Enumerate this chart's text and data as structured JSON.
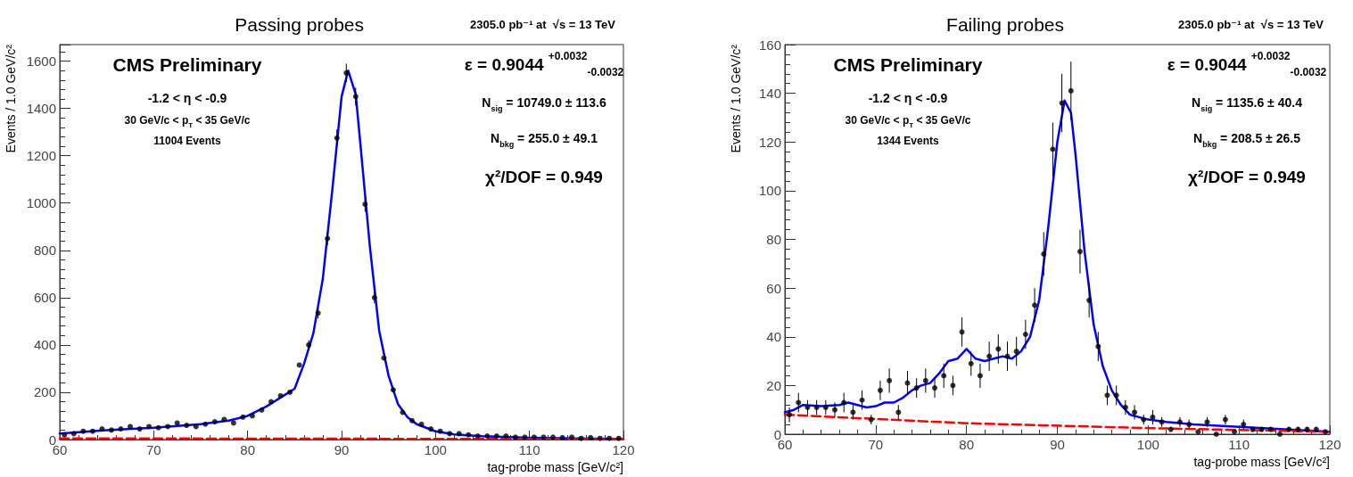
{
  "chart_data": [
    {
      "type": "scatter",
      "title": "Passing probes",
      "subtitle": "2305.0 pb⁻¹ at  √s = 13 TeV",
      "xlabel": "tag-probe mass [GeV/c²]",
      "ylabel": "Events / 1.0 GeV/c²",
      "xlim": [
        60,
        120
      ],
      "xticks": [
        60,
        70,
        80,
        90,
        100,
        110,
        120
      ],
      "ylim": [
        0,
        1670
      ],
      "yticks": [
        0,
        200,
        400,
        600,
        800,
        1000,
        1200,
        1400,
        1600
      ],
      "grid": false,
      "annotations": [
        "CMS Preliminary",
        "-1.2 < η < -0.9",
        "30 GeV/c < p$_{T}$ < 35 GeV/c",
        "11004 Events",
        "ε = 0.9044 $^{+0.0032}$$_{-0.0032}$",
        "N$_{sig}$ = 10749.0 ± 113.6",
        "N$_{bkg}$ = 255.0 ± 49.1",
        "χ²/DOF = 0.949"
      ],
      "series": [
        {
          "color": "#000000",
          "marker": "circle",
          "x": [
            60.5,
            61.5,
            62.5,
            63.5,
            64.5,
            65.5,
            66.5,
            67.5,
            68.5,
            69.5,
            70.5,
            71.5,
            72.5,
            73.5,
            74.5,
            75.5,
            76.5,
            77.5,
            78.5,
            79.5,
            80.5,
            81.5,
            82.5,
            83.5,
            84.5,
            85.5,
            86.5,
            87.5,
            88.5,
            89.5,
            90.5,
            91.5,
            92.5,
            93.5,
            94.5,
            95.5,
            96.5,
            97.5,
            98.5,
            99.5,
            100.5,
            101.5,
            102.5,
            103.5,
            104.5,
            105.5,
            106.5,
            107.5,
            108.5,
            109.5,
            110.5,
            111.5,
            112.5,
            113.5,
            114.5,
            115.5,
            116.5,
            117.5,
            118.5,
            119.5
          ],
          "values": [
            20,
            25,
            35,
            35,
            45,
            40,
            45,
            55,
            45,
            55,
            50,
            55,
            70,
            60,
            55,
            65,
            75,
            85,
            70,
            95,
            100,
            125,
            160,
            185,
            200,
            315,
            400,
            535,
            850,
            1275,
            1550,
            1450,
            995,
            600,
            345,
            210,
            115,
            80,
            65,
            45,
            35,
            25,
            25,
            20,
            15,
            15,
            15,
            15,
            10,
            10,
            10,
            10,
            10,
            8,
            10,
            5,
            8,
            5,
            5,
            5
          ],
          "errors": [
            null,
            null,
            null,
            null,
            null,
            null,
            null,
            null,
            null,
            null,
            null,
            null,
            null,
            null,
            null,
            null,
            null,
            null,
            null,
            null,
            null,
            null,
            null,
            null,
            null,
            null,
            20,
            23,
            29,
            36,
            39,
            38,
            32,
            24,
            null,
            null,
            null,
            null,
            null,
            null,
            null,
            null,
            null,
            null,
            null,
            null,
            null,
            null,
            null,
            null,
            null,
            null,
            null,
            null,
            null,
            null,
            null,
            null,
            null,
            null
          ]
        },
        {
          "type": "line",
          "color": "#0000ff",
          "marker": "none",
          "line_style": "solid",
          "x": [
            60,
            65,
            70,
            75,
            78,
            80,
            82,
            84,
            85,
            86,
            87,
            88,
            89,
            90,
            90.7,
            91.5,
            92,
            93,
            94,
            95,
            96,
            97,
            98,
            100,
            102,
            105,
            110,
            115,
            120
          ],
          "values": [
            25,
            40,
            50,
            65,
            80,
            100,
            140,
            190,
            215,
            320,
            450,
            680,
            1050,
            1450,
            1560,
            1460,
            1250,
            820,
            460,
            270,
            150,
            95,
            65,
            35,
            22,
            14,
            8,
            5,
            3
          ]
        },
        {
          "type": "line",
          "color": "#ff0000",
          "marker": "none",
          "line_style": "dashed",
          "x": [
            60,
            120
          ],
          "values": [
            5,
            2
          ]
        }
      ]
    },
    {
      "type": "scatter",
      "title": "Failing probes",
      "subtitle": "2305.0 pb⁻¹ at  √s = 13 TeV",
      "xlabel": "tag-probe mass [GeV/c²]",
      "ylabel": "Events / 1.0 GeV/c²",
      "xlim": [
        60,
        120
      ],
      "xticks": [
        60,
        70,
        80,
        90,
        100,
        110,
        120
      ],
      "ylim": [
        0,
        160
      ],
      "yticks": [
        0,
        20,
        40,
        60,
        80,
        100,
        120,
        140,
        160
      ],
      "grid": false,
      "annotations": [
        "CMS Preliminary",
        "-1.2 < η < -0.9",
        "30 GeV/c < p$_{T}$ < 35 GeV/c",
        "1344 Events",
        "ε = 0.9044 $^{+0.0032}$$_{-0.0032}$",
        "N$_{sig}$ = 1135.6 ± 40.4",
        "N$_{bkg}$ = 208.5 ± 26.5",
        "χ²/DOF = 0.949"
      ],
      "series": [
        {
          "color": "#000000",
          "marker": "circle",
          "x": [
            60.5,
            61.5,
            62.5,
            63.5,
            64.5,
            65.5,
            66.5,
            67.5,
            68.5,
            69.5,
            70.5,
            71.5,
            72.5,
            73.5,
            74.5,
            75.5,
            76.5,
            77.5,
            78.5,
            79.5,
            80.5,
            81.5,
            82.5,
            83.5,
            84.5,
            85.5,
            86.5,
            87.5,
            88.5,
            89.5,
            90.5,
            91.5,
            92.5,
            93.5,
            94.5,
            95.5,
            96.5,
            97.5,
            98.5,
            99.5,
            100.5,
            101.5,
            102.5,
            103.5,
            104.5,
            105.5,
            106.5,
            107.5,
            108.5,
            109.5,
            110.5,
            111.5,
            112.5,
            113.5,
            114.5,
            115.5,
            116.5,
            117.5,
            118.5,
            119.5
          ],
          "values": [
            8,
            13,
            11,
            11,
            11,
            10,
            13,
            9,
            14,
            6,
            18,
            22,
            9,
            21,
            19,
            22,
            19,
            24,
            20,
            42,
            29,
            24,
            32,
            35,
            32,
            34,
            41,
            53,
            74,
            117,
            136,
            141,
            75,
            55,
            36,
            16,
            16,
            11,
            9,
            6,
            7,
            5,
            2,
            5,
            4,
            1,
            5,
            0,
            6,
            1,
            4,
            2,
            2,
            2,
            0,
            2,
            2,
            2,
            2,
            1
          ],
          "errors": [
            3,
            4,
            3,
            3,
            3,
            3,
            4,
            3,
            4,
            2,
            4,
            5,
            3,
            5,
            4,
            5,
            4,
            5,
            4,
            6,
            5,
            5,
            6,
            6,
            6,
            6,
            6,
            7,
            9,
            11,
            12,
            12,
            9,
            7,
            6,
            4,
            4,
            3,
            3,
            2,
            3,
            2,
            1,
            2,
            2,
            null,
            2,
            null,
            2,
            null,
            2,
            1,
            1,
            1,
            null,
            1,
            1,
            1,
            1,
            null
          ]
        },
        {
          "type": "line",
          "color": "#0000ff",
          "marker": "none",
          "line_style": "solid",
          "x": [
            60,
            61,
            62,
            64,
            66,
            67,
            68,
            69,
            70,
            71,
            72,
            73,
            74,
            75,
            76,
            77,
            78,
            79,
            80,
            81,
            82,
            83,
            84,
            85,
            86,
            87,
            88,
            89,
            90,
            90.8,
            91.5,
            92,
            93,
            94,
            95,
            96,
            97,
            98,
            100,
            102,
            105,
            110,
            115,
            120
          ],
          "values": [
            9,
            10,
            12,
            11.5,
            12,
            13,
            12,
            11,
            11.5,
            13,
            13,
            15,
            18,
            20,
            21,
            25,
            30,
            31,
            35,
            31,
            30,
            31,
            32,
            31,
            34,
            40,
            55,
            85,
            120,
            137,
            132,
            115,
            75,
            45,
            28,
            18,
            12,
            8,
            6,
            5,
            4,
            3,
            2,
            1
          ]
        },
        {
          "type": "line",
          "color": "#ff0000",
          "marker": "none",
          "line_style": "dashed",
          "x": [
            60,
            80,
            100,
            120
          ],
          "values": [
            8,
            4.5,
            2.5,
            1
          ]
        }
      ]
    }
  ]
}
